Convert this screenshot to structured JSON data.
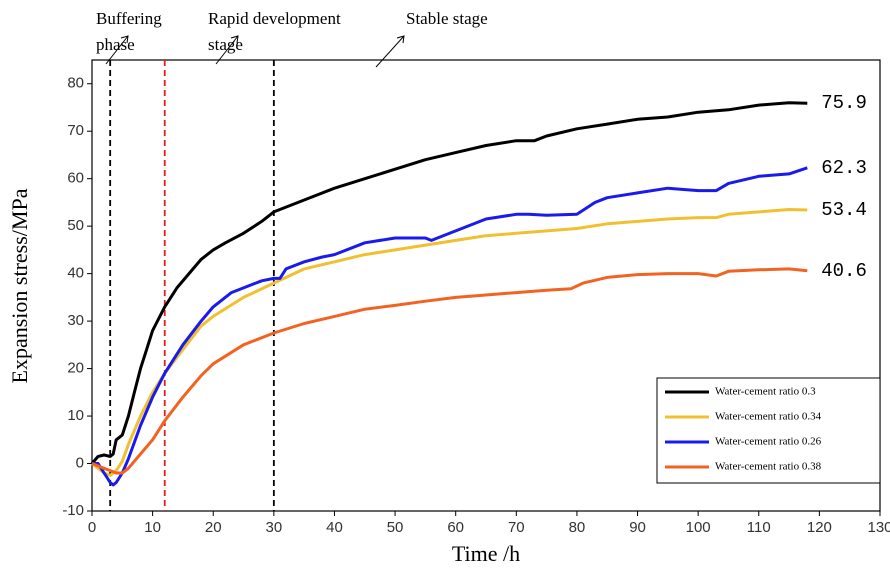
{
  "chart_data": {
    "type": "line",
    "xlabel": "Time /h",
    "ylabel": "Expansion stress/MPa",
    "xlim": [
      0,
      130
    ],
    "ylim": [
      -10,
      85
    ],
    "xticks": [
      0,
      10,
      20,
      30,
      40,
      50,
      60,
      70,
      80,
      90,
      100,
      110,
      120,
      130
    ],
    "yticks": [
      -10,
      0,
      10,
      20,
      30,
      40,
      50,
      60,
      70,
      80
    ],
    "legend": "lower right",
    "vlines": [
      {
        "x": 3,
        "color": "#000000"
      },
      {
        "x": 12,
        "color": "#e02020"
      },
      {
        "x": 30,
        "color": "#000000"
      }
    ],
    "annotations": [
      {
        "lines": [
          "Buffering",
          "phase"
        ]
      },
      {
        "lines": [
          "Rapid development",
          "stage"
        ]
      },
      {
        "lines": [
          "Stable stage"
        ]
      }
    ],
    "series": [
      {
        "name": "Water-cement ratio 0.3",
        "color": "#000000",
        "end_value": 75.9,
        "x": [
          0,
          1,
          2,
          3,
          3.5,
          4,
          4.5,
          5,
          6,
          7,
          8,
          9,
          10,
          12,
          14,
          16,
          18,
          20,
          22,
          25,
          28,
          30,
          35,
          40,
          45,
          50,
          55,
          60,
          65,
          70,
          73,
          75,
          80,
          85,
          90,
          95,
          100,
          105,
          110,
          115,
          118
        ],
        "values": [
          0,
          1.5,
          1.8,
          1.5,
          2,
          5,
          5.5,
          6,
          10,
          15,
          20,
          24,
          28,
          33,
          37,
          40,
          43,
          45,
          46.5,
          48.5,
          51,
          53,
          55.5,
          58,
          60,
          62,
          64,
          65.5,
          67,
          68,
          68,
          69,
          70.5,
          71.5,
          72.5,
          73,
          74,
          74.5,
          75.5,
          76,
          75.9
        ]
      },
      {
        "name": "Water-cement ratio 0.34",
        "color": "#f0c030",
        "end_value": 53.4,
        "x": [
          0,
          1,
          2,
          3,
          4,
          5,
          6,
          8,
          10,
          12,
          15,
          18,
          20,
          25,
          30,
          35,
          40,
          45,
          50,
          55,
          60,
          65,
          70,
          75,
          80,
          85,
          90,
          95,
          100,
          103,
          105,
          110,
          115,
          118
        ],
        "values": [
          0,
          -1,
          -2,
          -2.5,
          -1.5,
          0.5,
          4,
          10,
          15,
          19,
          24,
          29,
          31,
          35,
          38,
          41,
          42.5,
          44,
          45,
          46,
          47,
          48,
          48.5,
          49,
          49.5,
          50.5,
          51,
          51.5,
          51.8,
          51.8,
          52.5,
          53,
          53.5,
          53.4
        ]
      },
      {
        "name": "Water-cement ratio 0.26",
        "color": "#1a1aee",
        "end_value": 62.3,
        "x": [
          0,
          1,
          2,
          3,
          3.5,
          4,
          5,
          6,
          8,
          10,
          12,
          15,
          18,
          20,
          23,
          25,
          28,
          30,
          31,
          32,
          35,
          38,
          40,
          45,
          50,
          55,
          56,
          60,
          65,
          70,
          72,
          75,
          80,
          83,
          85,
          90,
          95,
          100,
          103,
          105,
          110,
          115,
          118
        ],
        "values": [
          0,
          0,
          -2,
          -4,
          -4.5,
          -4,
          -2,
          1,
          8,
          14,
          19,
          25,
          30,
          33,
          36,
          37,
          38.5,
          39,
          39,
          41,
          42.5,
          43.5,
          44,
          46.5,
          47.5,
          47.5,
          47,
          49,
          51.5,
          52.5,
          52.5,
          52.3,
          52.5,
          55,
          56,
          57,
          58,
          57.5,
          57.5,
          59,
          60.5,
          61,
          62.3
        ]
      },
      {
        "name": "Water-cement ratio 0.38",
        "color": "#f26322",
        "end_value": 40.6,
        "x": [
          0,
          2,
          3,
          4,
          5,
          6,
          8,
          10,
          12,
          15,
          18,
          20,
          25,
          30,
          35,
          40,
          45,
          50,
          55,
          60,
          65,
          70,
          75,
          79,
          81,
          85,
          90,
          95,
          100,
          103,
          105,
          110,
          115,
          118
        ],
        "values": [
          0,
          -1,
          -1.5,
          -2,
          -2,
          -1,
          2,
          5,
          9,
          14,
          18.5,
          21,
          25,
          27.5,
          29.5,
          31,
          32.5,
          33.3,
          34.2,
          35,
          35.5,
          36,
          36.5,
          36.8,
          38,
          39.2,
          39.8,
          40,
          40,
          39.5,
          40.5,
          40.8,
          41,
          40.6
        ]
      }
    ]
  }
}
